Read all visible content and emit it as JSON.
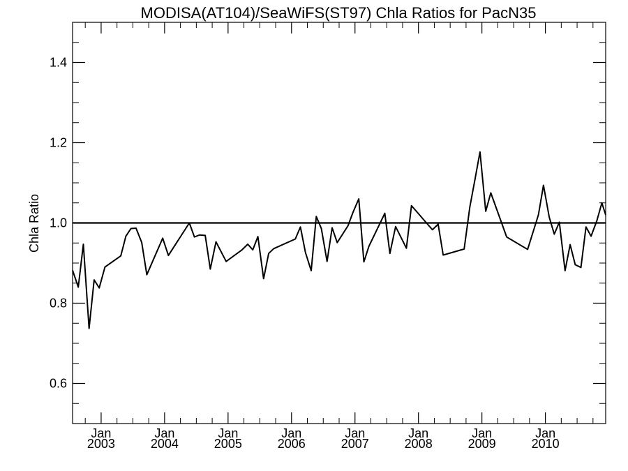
{
  "chart_data": {
    "type": "line",
    "title": "MODISA(AT104)/SeaWiFS(ST97)  Chla Ratios for PacN35",
    "xlabel": "",
    "ylabel": "Chla Ratio",
    "xlim": [
      2002.55,
      2010.95
    ],
    "ylim": [
      0.5,
      1.5
    ],
    "yticks": [
      0.6,
      0.8,
      1.0,
      1.2,
      1.4
    ],
    "ytick_labels": [
      "0.6",
      "0.8",
      "1.0",
      "1.2",
      "1.4"
    ],
    "xticks": [
      {
        "x": 2003.0,
        "month": "Jan",
        "year": "2003"
      },
      {
        "x": 2004.0,
        "month": "Jan",
        "year": "2004"
      },
      {
        "x": 2005.0,
        "month": "Jan",
        "year": "2005"
      },
      {
        "x": 2006.0,
        "month": "Jan",
        "year": "2006"
      },
      {
        "x": 2007.0,
        "month": "Jan",
        "year": "2007"
      },
      {
        "x": 2008.0,
        "month": "Jan",
        "year": "2008"
      },
      {
        "x": 2009.0,
        "month": "Jan",
        "year": "2009"
      },
      {
        "x": 2010.0,
        "month": "Jan",
        "year": "2010"
      }
    ],
    "reference_line": 1.0,
    "grid": false,
    "series": [
      {
        "x": [
          2002.55,
          2002.64,
          2002.72,
          2002.81,
          2002.89,
          2002.97,
          2003.06,
          2003.31,
          2003.39,
          2003.47,
          2003.55,
          2003.64,
          2003.72,
          2003.97,
          2004.06,
          2004.39,
          2004.47,
          2004.55,
          2004.64,
          2004.72,
          2004.81,
          2004.97,
          2005.22,
          2005.31,
          2005.39,
          2005.47,
          2005.56,
          2005.64,
          2005.72,
          2006.06,
          2006.14,
          2006.22,
          2006.31,
          2006.39,
          2006.47,
          2006.56,
          2006.64,
          2006.72,
          2006.89,
          2006.97,
          2007.06,
          2007.14,
          2007.22,
          2007.47,
          2007.55,
          2007.64,
          2007.81,
          2007.89,
          2008.22,
          2008.31,
          2008.39,
          2008.72,
          2008.81,
          2008.89,
          2008.97,
          2009.06,
          2009.14,
          2009.39,
          2009.72,
          2009.89,
          2009.97,
          2010.06,
          2010.14,
          2010.22,
          2010.31,
          2010.39,
          2010.47,
          2010.56,
          2010.64,
          2010.72,
          2010.81,
          2010.89,
          2010.95
        ],
        "y": [
          0.882,
          0.84,
          0.947,
          0.737,
          0.858,
          0.838,
          0.89,
          0.918,
          0.967,
          0.986,
          0.987,
          0.951,
          0.871,
          0.962,
          0.919,
          1.0,
          0.965,
          0.97,
          0.969,
          0.885,
          0.953,
          0.904,
          0.933,
          0.947,
          0.933,
          0.966,
          0.861,
          0.924,
          0.936,
          0.96,
          0.99,
          0.926,
          0.881,
          1.016,
          0.986,
          0.904,
          0.988,
          0.951,
          0.993,
          1.027,
          1.06,
          0.903,
          0.942,
          1.024,
          0.924,
          0.991,
          0.937,
          1.043,
          0.983,
          0.997,
          0.92,
          0.935,
          1.04,
          1.108,
          1.177,
          1.029,
          1.075,
          0.965,
          0.934,
          1.02,
          1.094,
          1.015,
          0.972,
          1.002,
          0.881,
          0.946,
          0.896,
          0.889,
          0.99,
          0.967,
          1.005,
          1.05,
          1.02
        ]
      }
    ]
  }
}
